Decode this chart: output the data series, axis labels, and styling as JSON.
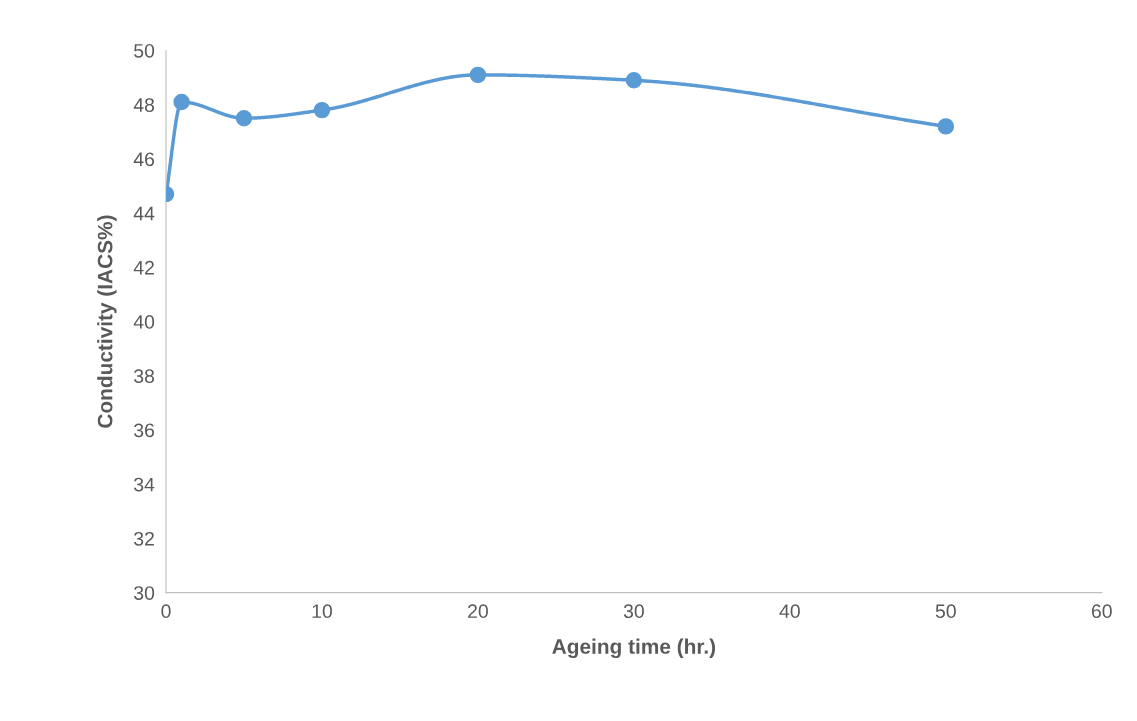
{
  "chart_data": {
    "type": "line",
    "xlabel": "Ageing time (hr.)",
    "ylabel": "Conductivity (IACS%)",
    "x": [
      0,
      1,
      5,
      10,
      20,
      30,
      50
    ],
    "series": [
      {
        "color": "#5b9bd5",
        "values": [
          44.7,
          48.1,
          47.5,
          47.8,
          49.1,
          48.9,
          47.2
        ]
      }
    ],
    "xlim": [
      0,
      60
    ],
    "ylim": [
      30,
      50
    ],
    "xticks": [
      0,
      10,
      20,
      30,
      40,
      50,
      60
    ],
    "yticks": [
      30,
      32,
      34,
      36,
      38,
      40,
      42,
      44,
      46,
      48,
      50
    ],
    "marker": "circle",
    "line_style": "solid",
    "grid": false,
    "legend": false
  }
}
